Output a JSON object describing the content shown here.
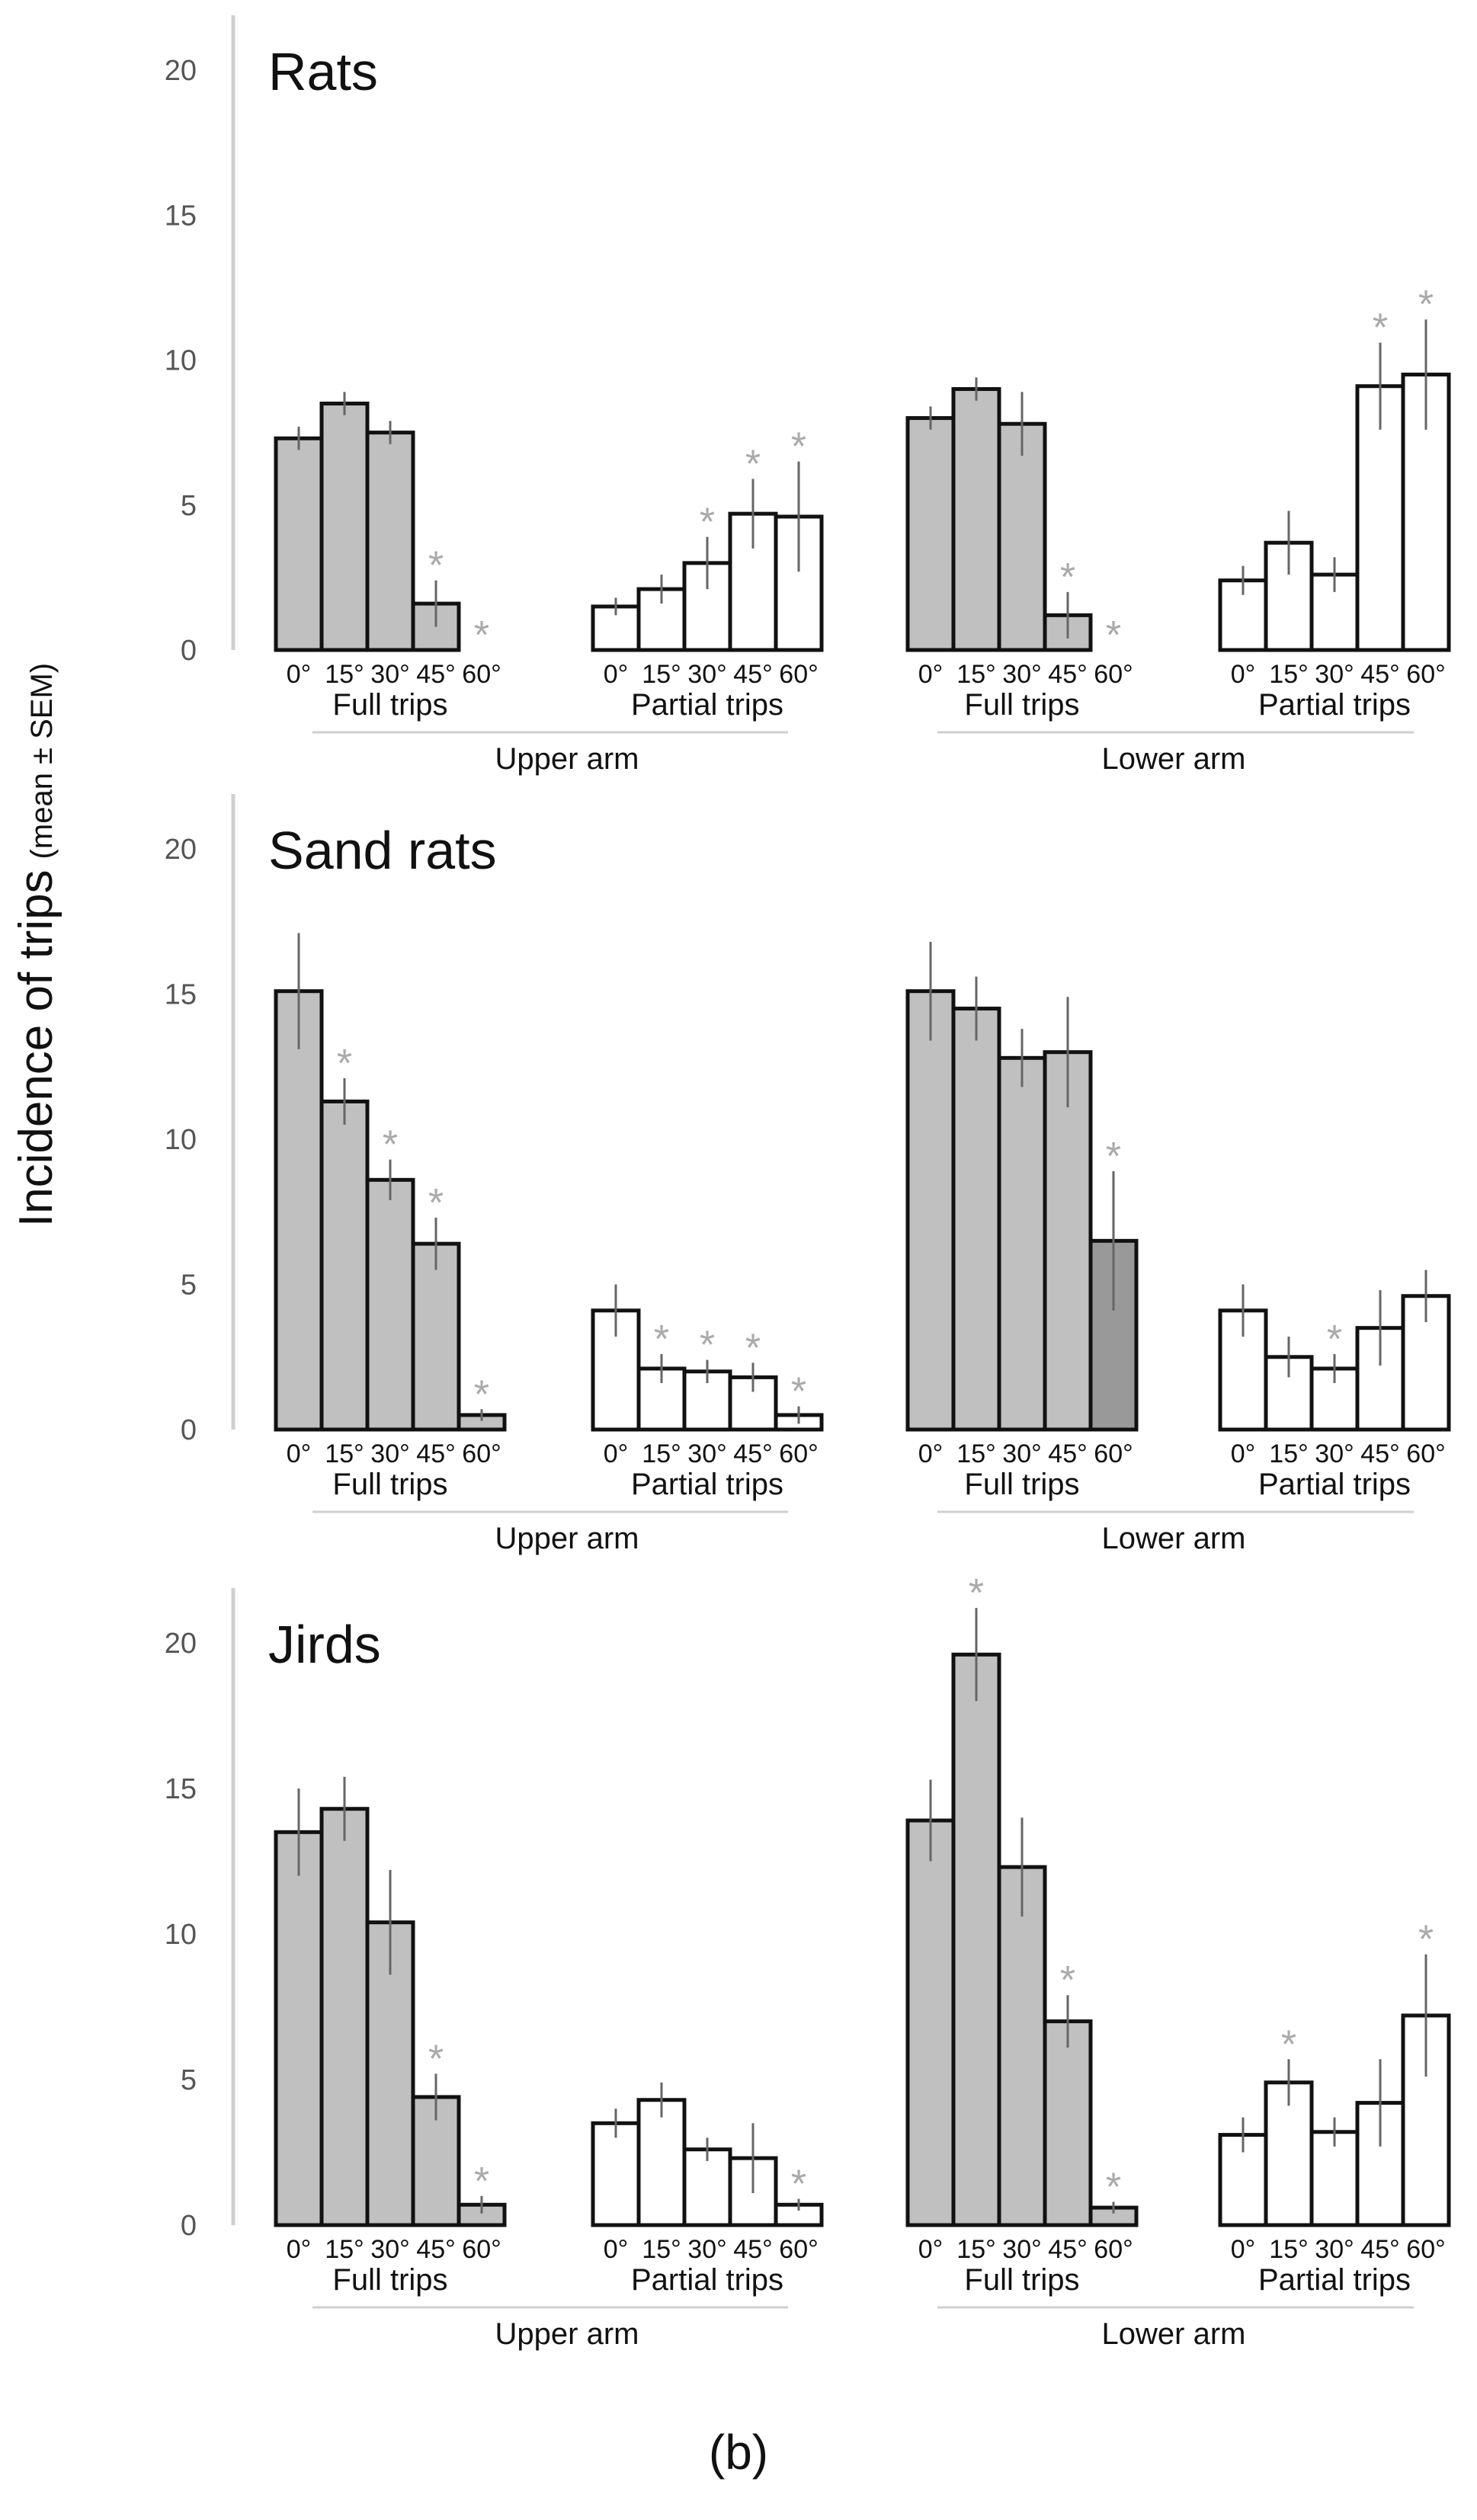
{
  "figure_label": "(b)",
  "y_axis_label": "Incidence of trips",
  "y_axis_label_units": "(mean ± SEM)",
  "colors": {
    "full_bar": "#c0c0c0",
    "full_bar_last_sand_lower": "#999999",
    "partial_bar": "#ffffff",
    "star": "#aaaaaa",
    "axis": "#cfcfcf",
    "error": "#666666"
  },
  "chart_data": [
    {
      "type": "bar",
      "title": "Rats",
      "ylim": [
        0,
        20
      ],
      "yticks": [
        0,
        5,
        10,
        15,
        20
      ],
      "categories": [
        "0°",
        "15°",
        "30°",
        "45°",
        "60°"
      ],
      "groups": [
        {
          "arm": "Upper arm",
          "trip": "Full trips",
          "values": [
            7.3,
            8.5,
            7.5,
            1.6,
            0
          ],
          "errors": [
            0.4,
            0.4,
            0.4,
            0.8,
            0
          ],
          "significant": [
            false,
            false,
            false,
            true,
            true
          ]
        },
        {
          "arm": "Upper arm",
          "trip": "Partial trips",
          "values": [
            1.5,
            2.1,
            3.0,
            4.7,
            4.6
          ],
          "errors": [
            0.3,
            0.5,
            0.9,
            1.2,
            1.9
          ],
          "significant": [
            false,
            false,
            true,
            true,
            true
          ]
        },
        {
          "arm": "Lower arm",
          "trip": "Full trips",
          "values": [
            8.0,
            9.0,
            7.8,
            1.2,
            0
          ],
          "errors": [
            0.4,
            0.4,
            1.1,
            0.8,
            0
          ],
          "significant": [
            false,
            false,
            false,
            true,
            true
          ]
        },
        {
          "arm": "Lower arm",
          "trip": "Partial trips",
          "values": [
            2.4,
            3.7,
            2.6,
            9.1,
            9.5
          ],
          "errors": [
            0.5,
            1.1,
            0.6,
            1.5,
            1.9
          ],
          "significant": [
            false,
            false,
            false,
            true,
            true
          ]
        }
      ]
    },
    {
      "type": "bar",
      "title": "Sand rats",
      "ylim": [
        0,
        20
      ],
      "yticks": [
        0,
        5,
        10,
        15,
        20
      ],
      "categories": [
        "0°",
        "15°",
        "30°",
        "45°",
        "60°"
      ],
      "groups": [
        {
          "arm": "Upper arm",
          "trip": "Full trips",
          "values": [
            15.1,
            11.3,
            8.6,
            6.4,
            0.5
          ],
          "errors": [
            2.0,
            0.8,
            0.7,
            0.9,
            0.2
          ],
          "significant": [
            false,
            true,
            true,
            true,
            true
          ]
        },
        {
          "arm": "Upper arm",
          "trip": "Partial trips",
          "values": [
            4.1,
            2.1,
            2.0,
            1.8,
            0.5
          ],
          "errors": [
            0.9,
            0.5,
            0.4,
            0.5,
            0.3
          ],
          "significant": [
            false,
            true,
            true,
            true,
            true
          ]
        },
        {
          "arm": "Lower arm",
          "trip": "Full trips",
          "values": [
            15.1,
            14.5,
            12.8,
            13.0,
            6.5
          ],
          "errors": [
            1.7,
            1.1,
            1.0,
            1.9,
            2.4
          ],
          "significant": [
            false,
            false,
            false,
            false,
            true
          ]
        },
        {
          "arm": "Lower arm",
          "trip": "Partial trips",
          "values": [
            4.1,
            2.5,
            2.1,
            3.5,
            4.6
          ],
          "errors": [
            0.9,
            0.7,
            0.5,
            1.3,
            0.9
          ],
          "significant": [
            false,
            false,
            true,
            false,
            false
          ]
        }
      ]
    },
    {
      "type": "bar",
      "title": "Jirds",
      "ylim": [
        0,
        20
      ],
      "yticks": [
        0,
        5,
        10,
        15,
        20
      ],
      "categories": [
        "0°",
        "15°",
        "30°",
        "45°",
        "60°"
      ],
      "groups": [
        {
          "arm": "Upper arm",
          "trip": "Full trips",
          "values": [
            13.5,
            14.3,
            10.4,
            4.4,
            0.7
          ],
          "errors": [
            1.5,
            1.1,
            1.8,
            0.8,
            0.3
          ],
          "significant": [
            false,
            false,
            false,
            true,
            true
          ]
        },
        {
          "arm": "Upper arm",
          "trip": "Partial trips",
          "values": [
            3.5,
            4.3,
            2.6,
            2.3,
            0.7
          ],
          "errors": [
            0.5,
            0.6,
            0.4,
            1.2,
            0.2
          ],
          "significant": [
            false,
            false,
            false,
            false,
            true
          ]
        },
        {
          "arm": "Lower arm",
          "trip": "Full trips",
          "values": [
            13.9,
            19.6,
            12.3,
            7.0,
            0.6
          ],
          "errors": [
            1.4,
            1.6,
            1.7,
            0.9,
            0.2
          ],
          "significant": [
            false,
            true,
            false,
            true,
            true
          ]
        },
        {
          "arm": "Lower arm",
          "trip": "Partial trips",
          "values": [
            3.1,
            4.9,
            3.2,
            4.2,
            7.2
          ],
          "errors": [
            0.6,
            0.8,
            0.5,
            1.5,
            2.1
          ],
          "significant": [
            false,
            true,
            false,
            false,
            true
          ]
        }
      ]
    }
  ]
}
